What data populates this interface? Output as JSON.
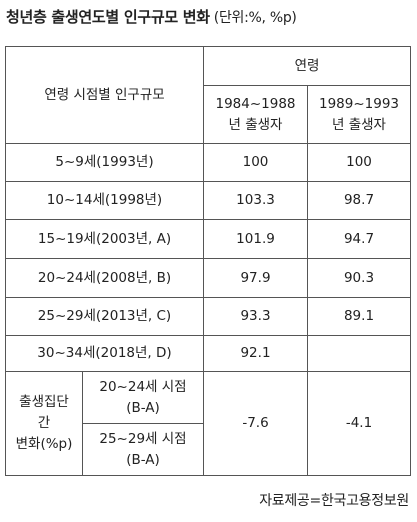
{
  "title": "청년층 출생연도별 인구규모 변화",
  "unit": "(단위:%, %p)",
  "table": {
    "row_header": "연령 시점별 인구규모",
    "age_header": "연령",
    "cohort_1984_1988": [
      "1984~1988",
      "년 출생자"
    ],
    "cohort_1989_1993": [
      "1989~1993",
      "년 출생자"
    ],
    "rows": [
      {
        "label": "5~9세(1993년)",
        "c1": "100",
        "c2": "100"
      },
      {
        "label": "10~14세(1998년)",
        "c1": "103.3",
        "c2": "98.7"
      },
      {
        "label": "15~19세(2003년, A)",
        "c1": "101.9",
        "c2": "94.7"
      },
      {
        "label": "20~24세(2008년, B)",
        "c1": "97.9",
        "c2": "90.3"
      },
      {
        "label": "25~29세(2013년, C)",
        "c1": "93.3",
        "c2": "89.1"
      },
      {
        "label": "30~34세(2018년, D)",
        "c1": "92.1",
        "c2": ""
      }
    ],
    "change": {
      "group_label": [
        "출생집단",
        "간",
        "변화(%p)"
      ],
      "sub1": [
        "20~24세 시점",
        "(B-A)"
      ],
      "sub2": [
        "25~29세 시점",
        "(B-A)"
      ],
      "c1": "-7.6",
      "c2": "-4.1"
    }
  },
  "source": "자료제공=한국고용정보원"
}
